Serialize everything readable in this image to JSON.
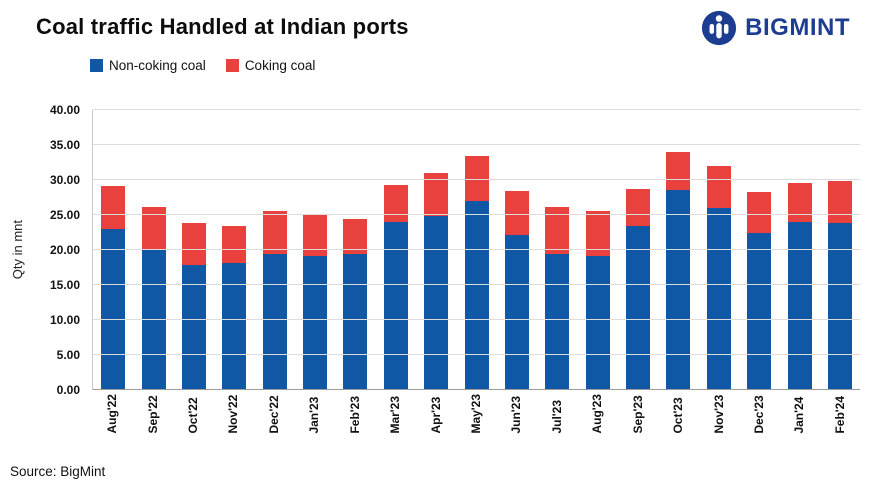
{
  "header": {
    "title": "Coal traffic Handled at Indian ports",
    "logo_text": "BIGMINT",
    "logo_color": "#1d3d91"
  },
  "chart_data": {
    "type": "bar",
    "stacked": true,
    "title": "Coal traffic Handled at Indian ports",
    "ylabel": "Qty in mnt",
    "xlabel": "",
    "ylim": [
      0,
      40
    ],
    "ytick_step": 5,
    "yticks": [
      "0.00",
      "5.00",
      "10.00",
      "15.00",
      "20.00",
      "25.00",
      "30.00",
      "35.00",
      "40.00"
    ],
    "grid": true,
    "legend_position": "top-left",
    "categories": [
      "Aug'22",
      "Sep'22",
      "Oct'22",
      "Nov'22",
      "Dec'22",
      "Jan'23",
      "Feb'23",
      "Mar'23",
      "Apr'23",
      "May'23",
      "Jun'23",
      "Jul'23",
      "Aug'23",
      "Sep'23",
      "Oct'23",
      "Nov'23",
      "Dec'23",
      "Jan'24",
      "Feb'24"
    ],
    "series": [
      {
        "name": "Non-coking coal",
        "color": "#1057a5",
        "values": [
          23.0,
          20.0,
          17.8,
          18.1,
          19.4,
          19.1,
          19.5,
          24.0,
          24.8,
          27.0,
          22.2,
          19.5,
          19.2,
          23.5,
          28.6,
          26.0,
          22.5,
          24.0,
          23.8
        ]
      },
      {
        "name": "Coking coal",
        "color": "#e8413e",
        "values": [
          6.2,
          6.2,
          6.0,
          5.3,
          6.2,
          6.0,
          5.0,
          5.3,
          6.2,
          6.5,
          6.3,
          6.6,
          6.4,
          5.2,
          5.4,
          6.0,
          5.8,
          5.6,
          6.0
        ]
      }
    ]
  },
  "footer": {
    "source": "Source: BigMint"
  }
}
